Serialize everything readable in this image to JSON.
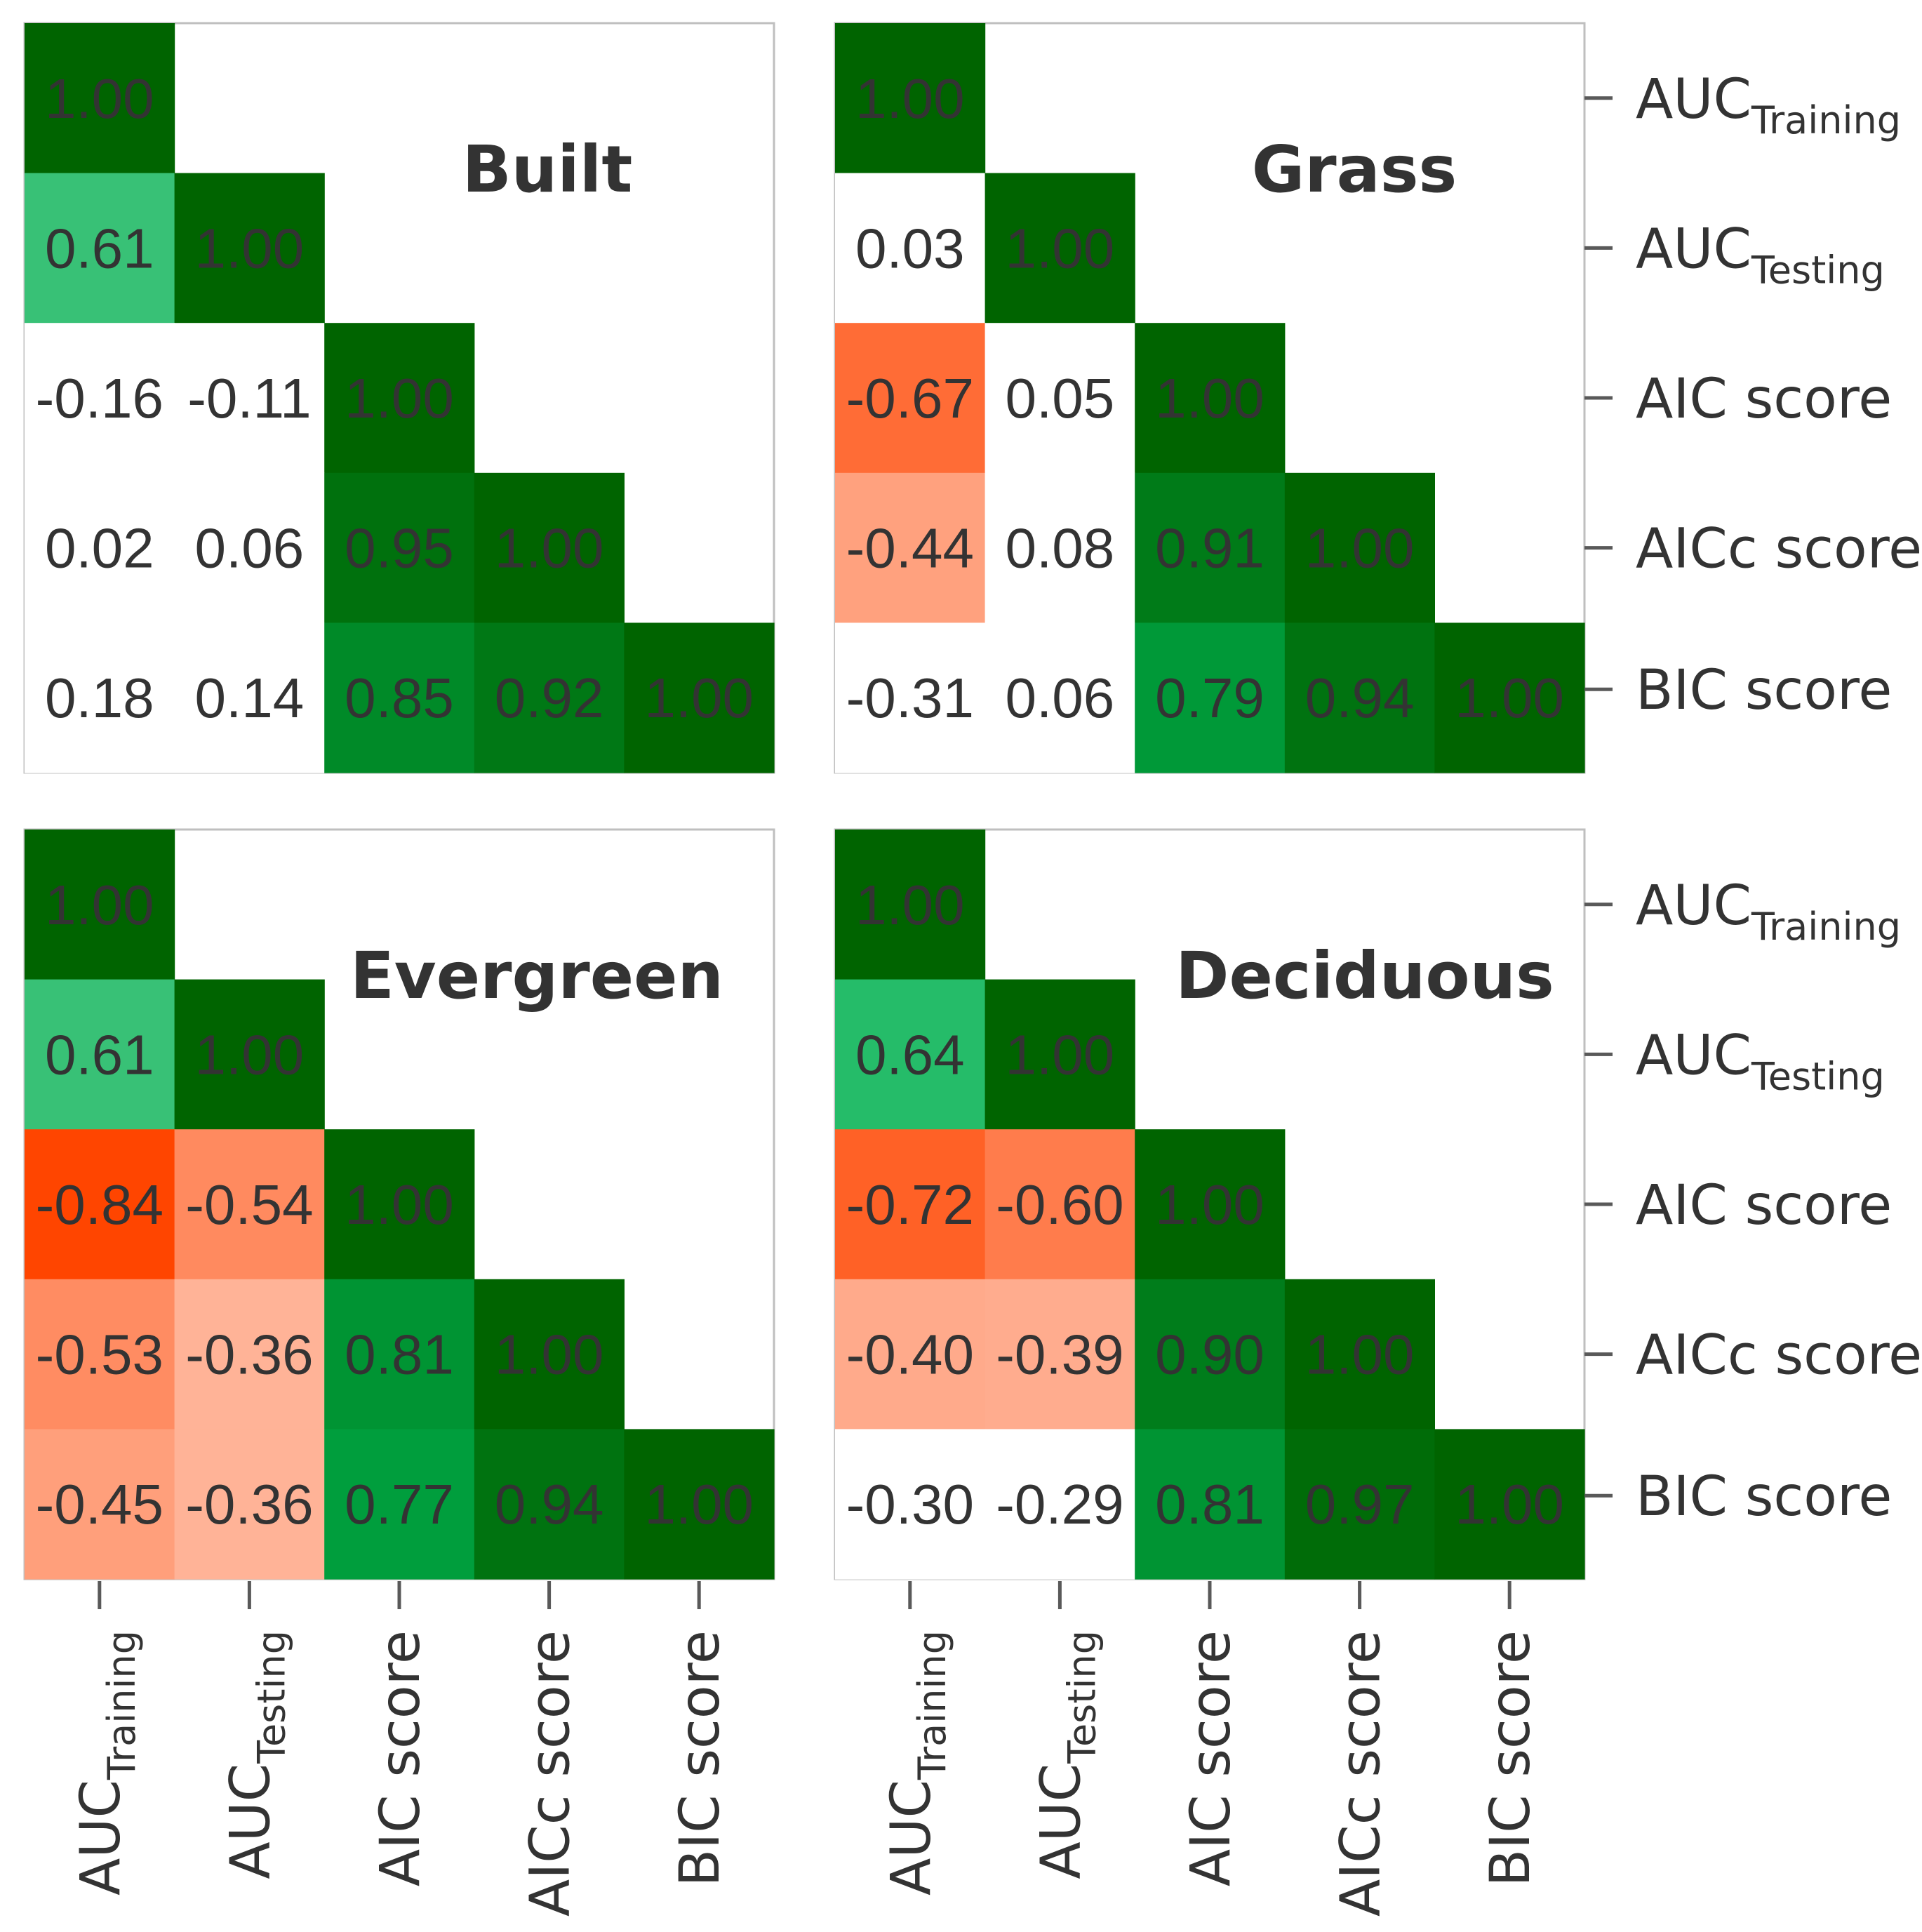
{
  "chart_data": {
    "type": "heatmap",
    "variables": [
      {
        "main": "AUC",
        "sub": "Training"
      },
      {
        "main": "AUC",
        "sub": "Testing"
      },
      {
        "main": "AIC score",
        "sub": ""
      },
      {
        "main": "AICc score",
        "sub": ""
      },
      {
        "main": "BIC score",
        "sub": ""
      }
    ],
    "value_range": [
      -1,
      1
    ],
    "colors": {
      "positive_strong": "#006400",
      "positive_mid": "#00b050",
      "negative_strong": "#ff4500",
      "neutral": "#ffffff",
      "value_text": "#333333",
      "label_text": "#333333",
      "frame": "#bfbfbf"
    },
    "panels": [
      {
        "title": "Built",
        "matrix": [
          [
            1.0
          ],
          [
            0.61,
            1.0
          ],
          [
            -0.16,
            -0.11,
            1.0
          ],
          [
            0.02,
            0.06,
            0.95,
            1.0
          ],
          [
            0.18,
            0.14,
            0.85,
            0.92,
            1.0
          ]
        ]
      },
      {
        "title": "Grass",
        "matrix": [
          [
            1.0
          ],
          [
            0.03,
            1.0
          ],
          [
            -0.67,
            0.05,
            1.0
          ],
          [
            -0.44,
            0.08,
            0.91,
            1.0
          ],
          [
            -0.31,
            0.06,
            0.79,
            0.94,
            1.0
          ]
        ]
      },
      {
        "title": "Evergreen",
        "matrix": [
          [
            1.0
          ],
          [
            0.61,
            1.0
          ],
          [
            -0.84,
            -0.54,
            1.0
          ],
          [
            -0.53,
            -0.36,
            0.81,
            1.0
          ],
          [
            -0.45,
            -0.36,
            0.77,
            0.94,
            1.0
          ]
        ]
      },
      {
        "title": "Deciduous",
        "matrix": [
          [
            1.0
          ],
          [
            0.64,
            1.0
          ],
          [
            -0.72,
            -0.6,
            1.0
          ],
          [
            -0.4,
            -0.39,
            0.9,
            1.0
          ],
          [
            -0.3,
            -0.29,
            0.81,
            0.97,
            1.0
          ]
        ]
      }
    ]
  }
}
